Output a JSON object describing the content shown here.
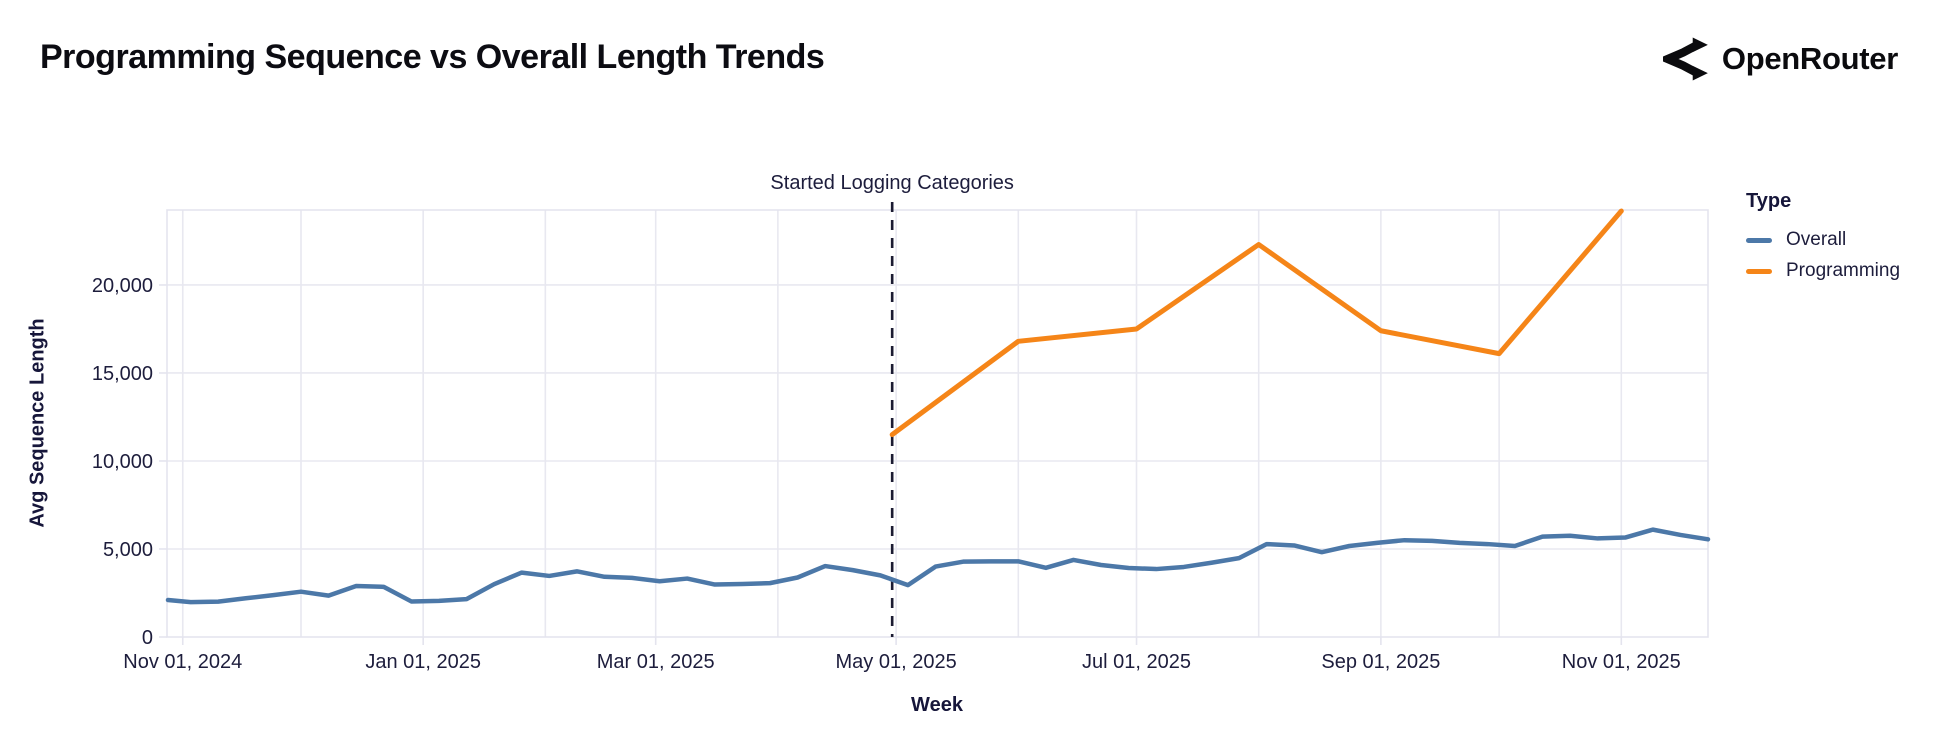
{
  "header": {
    "title": "Programming Sequence vs Overall Length Trends",
    "brand": "OpenRouter"
  },
  "legend": {
    "title": "Type",
    "items": [
      {
        "label": "Overall",
        "color": "#4c78a8"
      },
      {
        "label": "Programming",
        "color": "#f58518"
      }
    ]
  },
  "chart_data": {
    "type": "line",
    "title": "Programming Sequence vs Overall Length Trends",
    "xlabel": "Week",
    "ylabel": "Avg Sequence Length",
    "grid": true,
    "legend_position": "right",
    "ylim": [
      0,
      24260
    ],
    "x_domain": [
      "2024-10-28",
      "2025-11-23"
    ],
    "y_ticks": [
      {
        "value": 0,
        "label": "0"
      },
      {
        "value": 5000,
        "label": "5,000"
      },
      {
        "value": 10000,
        "label": "10,000"
      },
      {
        "value": 15000,
        "label": "15,000"
      },
      {
        "value": 20000,
        "label": "20,000"
      }
    ],
    "x_ticks": [
      {
        "date": "2024-11-01",
        "label": "Nov 01, 2024"
      },
      {
        "date": "2025-01-01",
        "label": "Jan 01, 2025"
      },
      {
        "date": "2025-03-01",
        "label": "Mar 01, 2025"
      },
      {
        "date": "2025-05-01",
        "label": "May 01, 2025"
      },
      {
        "date": "2025-07-01",
        "label": "Jul 01, 2025"
      },
      {
        "date": "2025-09-01",
        "label": "Sep 01, 2025"
      },
      {
        "date": "2025-11-01",
        "label": "Nov 01, 2025"
      }
    ],
    "x_gridlines": [
      "2024-11-01",
      "2024-12-01",
      "2025-01-01",
      "2025-02-01",
      "2025-03-01",
      "2025-04-01",
      "2025-05-01",
      "2025-06-01",
      "2025-07-01",
      "2025-08-01",
      "2025-09-01",
      "2025-10-01",
      "2025-11-01"
    ],
    "grid_color": "#e8e8f0",
    "border_color": "#e4e4ee",
    "annotation": {
      "label": "Started Logging Categories",
      "x": "2025-04-30",
      "line_color": "#1b1b32"
    },
    "series": [
      {
        "name": "Overall",
        "color": "#4c78a8",
        "width": 4.5,
        "x": [
          "2024-10-27",
          "2024-11-03",
          "2024-11-10",
          "2024-11-17",
          "2024-11-24",
          "2024-12-01",
          "2024-12-08",
          "2024-12-15",
          "2024-12-22",
          "2024-12-29",
          "2025-01-05",
          "2025-01-12",
          "2025-01-19",
          "2025-01-26",
          "2025-02-02",
          "2025-02-09",
          "2025-02-16",
          "2025-02-23",
          "2025-03-02",
          "2025-03-09",
          "2025-03-16",
          "2025-03-23",
          "2025-03-30",
          "2025-04-06",
          "2025-04-13",
          "2025-04-20",
          "2025-04-27",
          "2025-05-04",
          "2025-05-11",
          "2025-05-18",
          "2025-05-25",
          "2025-06-01",
          "2025-06-08",
          "2025-06-15",
          "2025-06-22",
          "2025-06-29",
          "2025-07-06",
          "2025-07-13",
          "2025-07-20",
          "2025-07-27",
          "2025-08-03",
          "2025-08-10",
          "2025-08-17",
          "2025-08-24",
          "2025-08-31",
          "2025-09-07",
          "2025-09-14",
          "2025-09-21",
          "2025-09-28",
          "2025-10-05",
          "2025-10-12",
          "2025-10-19",
          "2025-10-26",
          "2025-11-02",
          "2025-11-09",
          "2025-11-16",
          "2025-11-23"
        ],
        "values": [
          2100,
          1980,
          2010,
          2200,
          2380,
          2575,
          2350,
          2900,
          2850,
          2020,
          2050,
          2150,
          3000,
          3660,
          3470,
          3730,
          3420,
          3360,
          3170,
          3320,
          2980,
          3010,
          3060,
          3380,
          4030,
          3800,
          3500,
          2950,
          4000,
          4280,
          4300,
          4300,
          3930,
          4380,
          4090,
          3920,
          3860,
          3980,
          4220,
          4480,
          5280,
          5200,
          4820,
          5170,
          5350,
          5500,
          5460,
          5350,
          5280,
          5170,
          5700,
          5750,
          5600,
          5650,
          6100,
          5800,
          5550
        ]
      },
      {
        "name": "Programming",
        "color": "#f58518",
        "width": 5,
        "x": [
          "2025-04-30",
          "2025-06-01",
          "2025-07-01",
          "2025-08-01",
          "2025-09-01",
          "2025-10-01",
          "2025-11-01"
        ],
        "values": [
          11500,
          16800,
          17500,
          22300,
          17400,
          16100,
          24200
        ]
      }
    ]
  }
}
